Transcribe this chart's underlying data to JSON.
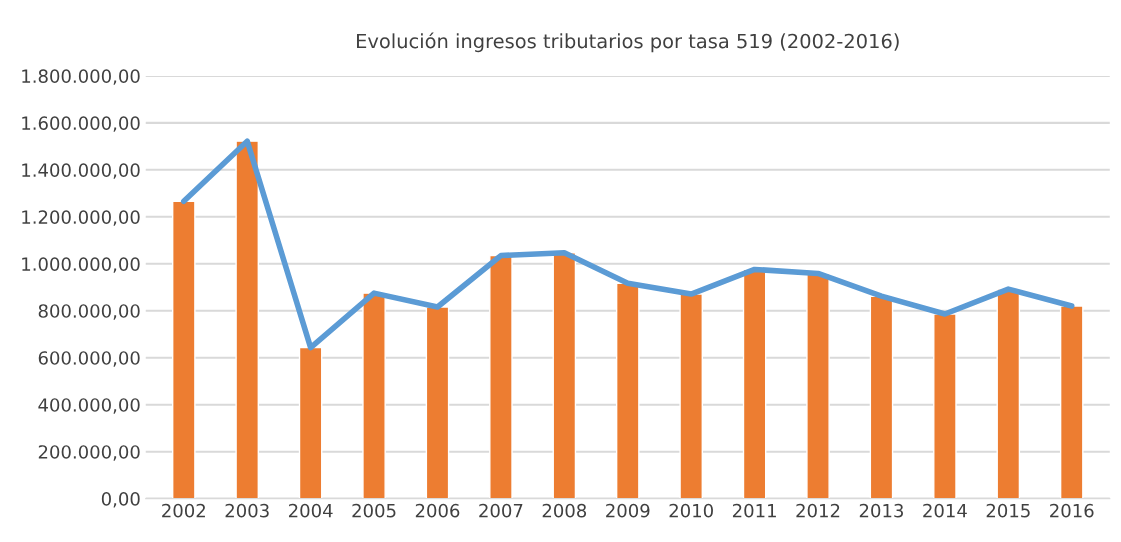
{
  "chart_data": {
    "type": "bar",
    "title": "Evolución ingresos tributarios por tasa 519 (2002-2016)",
    "categories": [
      "2002",
      "2003",
      "2004",
      "2005",
      "2006",
      "2007",
      "2008",
      "2009",
      "2010",
      "2011",
      "2012",
      "2013",
      "2014",
      "2015",
      "2016"
    ],
    "series": [
      {
        "color": "#ed7d31",
        "values": [
          1266000,
          1522000,
          643000,
          875000,
          816000,
          1035000,
          1047000,
          917000,
          871000,
          976000,
          959000,
          862000,
          786000,
          892000,
          820000
        ]
      },
      {
        "type": "line",
        "color": "#5b9bd5",
        "values": [
          1266000,
          1522000,
          643000,
          875000,
          816000,
          1035000,
          1047000,
          917000,
          871000,
          976000,
          959000,
          862000,
          786000,
          892000,
          820000
        ]
      }
    ],
    "ylim": [
      0,
      1800000
    ],
    "yticks": [
      {
        "value": 0,
        "label": "0,00"
      },
      {
        "value": 200000,
        "label": "200.000,00"
      },
      {
        "value": 400000,
        "label": "400.000,00"
      },
      {
        "value": 600000,
        "label": "600.000,00"
      },
      {
        "value": 800000,
        "label": "800.000,00"
      },
      {
        "value": 1000000,
        "label": "1.000.000,00"
      },
      {
        "value": 1200000,
        "label": "1.200.000,00"
      },
      {
        "value": 1400000,
        "label": "1.400.000,00"
      },
      {
        "value": 1600000,
        "label": "1.600.000,00"
      },
      {
        "value": 1800000,
        "label": "1.800.000,00"
      }
    ],
    "grid": "y",
    "legend": false,
    "marker": "none",
    "line_style": "solid"
  }
}
